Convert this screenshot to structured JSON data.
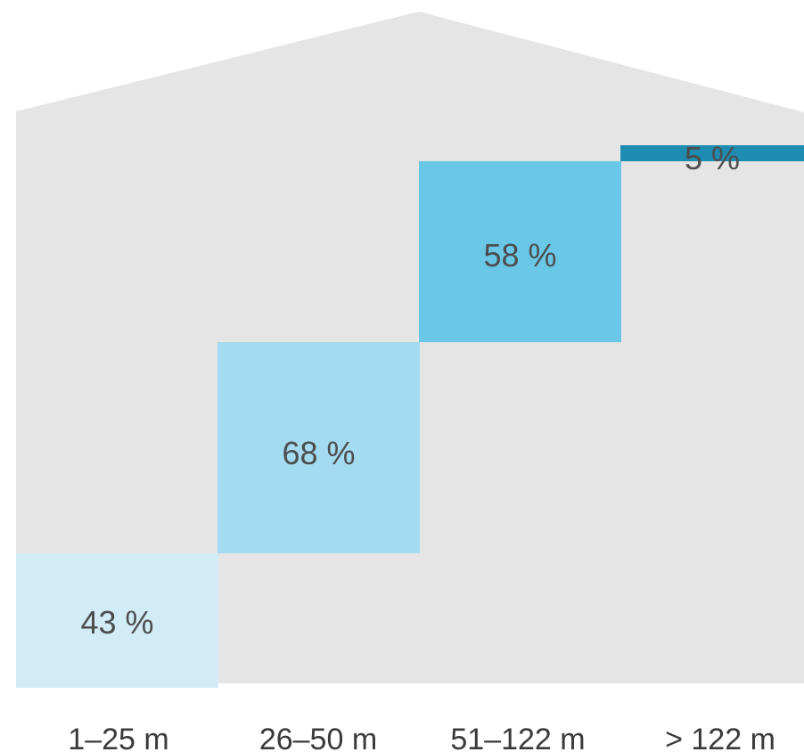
{
  "colors": {
    "background": "#ffffff",
    "house": "#e5e5e5",
    "value_text": "#4d4d4d",
    "category_text": "#3a3a3a"
  },
  "chart_data": {
    "type": "bar",
    "style": "step blocks inside a house-shaped silhouette",
    "title": "",
    "xlabel": "",
    "ylabel": "",
    "categories": [
      "1–25 m",
      "26–50 m",
      "51–122 m",
      "> 122 m"
    ],
    "values": [
      43,
      68,
      58,
      5
    ],
    "value_labels": [
      "43 %",
      "68 %",
      "58 %",
      "5 %"
    ],
    "unit": "%",
    "bar_colors": [
      "#d1ecf7",
      "#a3dbf0",
      "#69c8e8",
      "#1e8cb0"
    ],
    "grid": false,
    "legend": "none"
  }
}
